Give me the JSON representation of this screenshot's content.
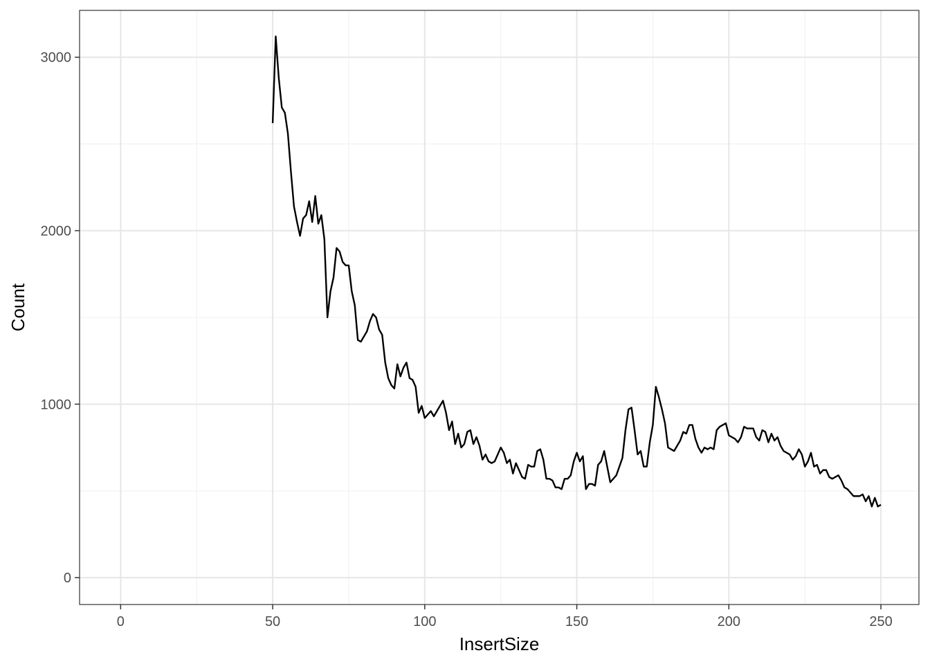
{
  "chart_data": {
    "type": "line",
    "title": "",
    "xlabel": "InsertSize",
    "ylabel": "Count",
    "xlim": [
      -13.5,
      262.5
    ],
    "ylim": [
      -155,
      3270
    ],
    "xticks": [
      0,
      50,
      100,
      150,
      200,
      250
    ],
    "xtick_labels": [
      "0",
      "50",
      "100",
      "150",
      "200",
      "250"
    ],
    "yticks": [
      0,
      1000,
      2000,
      3000
    ],
    "ytick_labels": [
      "0",
      "1000",
      "2000",
      "3000"
    ],
    "grid": true,
    "legend": "none",
    "colors": {
      "line": "#000000",
      "grid_major": "#e6e6e6",
      "grid_minor": "#f2f2f2",
      "panel_border": "#333333"
    },
    "series": [
      {
        "x": [
          50,
          51,
          52,
          53,
          54,
          55,
          56,
          57,
          58,
          59,
          60,
          61,
          62,
          63,
          64,
          65,
          66,
          67,
          68,
          69,
          70,
          71,
          72,
          73,
          74,
          75,
          76,
          77,
          78,
          79,
          80,
          81,
          82,
          83,
          84,
          85,
          86,
          87,
          88,
          89,
          90,
          91,
          92,
          93,
          94,
          95,
          96,
          97,
          98,
          99,
          100,
          101,
          102,
          103,
          104,
          105,
          106,
          107,
          108,
          109,
          110,
          111,
          112,
          113,
          114,
          115,
          116,
          117,
          118,
          119,
          120,
          121,
          122,
          123,
          124,
          125,
          126,
          127,
          128,
          129,
          130,
          131,
          132,
          133,
          134,
          135,
          136,
          137,
          138,
          139,
          140,
          141,
          142,
          143,
          144,
          145,
          146,
          147,
          148,
          149,
          150,
          151,
          152,
          153,
          154,
          155,
          156,
          157,
          158,
          159,
          160,
          161,
          162,
          163,
          164,
          165,
          166,
          167,
          168,
          169,
          170,
          171,
          172,
          173,
          174,
          175,
          176,
          177,
          178,
          179,
          180,
          181,
          182,
          183,
          184,
          185,
          186,
          187,
          188,
          189,
          190,
          191,
          192,
          193,
          194,
          195,
          196,
          197,
          198,
          199,
          200,
          201,
          202,
          203,
          204,
          205,
          206,
          207,
          208,
          209,
          210,
          211,
          212,
          213,
          214,
          215,
          216,
          217,
          218,
          219,
          220,
          221,
          222,
          223,
          224,
          225,
          226,
          227,
          228,
          229,
          230,
          231,
          232,
          233,
          234,
          235,
          236,
          237,
          238,
          239,
          240,
          241,
          242,
          243,
          244,
          245,
          246,
          247,
          248,
          249,
          250
        ],
        "y": [
          2620,
          3120,
          2880,
          2710,
          2680,
          2560,
          2340,
          2140,
          2050,
          1970,
          2070,
          2090,
          2170,
          2050,
          2200,
          2040,
          2090,
          1950,
          1500,
          1650,
          1730,
          1900,
          1880,
          1820,
          1800,
          1800,
          1650,
          1570,
          1370,
          1360,
          1390,
          1420,
          1480,
          1520,
          1500,
          1430,
          1400,
          1240,
          1150,
          1110,
          1090,
          1230,
          1160,
          1210,
          1240,
          1150,
          1140,
          1100,
          950,
          990,
          920,
          940,
          960,
          930,
          960,
          990,
          1020,
          950,
          850,
          900,
          770,
          830,
          750,
          770,
          840,
          850,
          770,
          810,
          760,
          680,
          710,
          670,
          660,
          670,
          710,
          750,
          720,
          660,
          680,
          600,
          660,
          620,
          580,
          570,
          650,
          640,
          640,
          730,
          740,
          680,
          570,
          570,
          560,
          520,
          520,
          510,
          570,
          570,
          590,
          670,
          720,
          670,
          700,
          510,
          540,
          540,
          530,
          650,
          670,
          730,
          640,
          550,
          570,
          590,
          640,
          690,
          850,
          970,
          980,
          850,
          710,
          730,
          640,
          640,
          780,
          880,
          1100,
          1040,
          970,
          890,
          750,
          740,
          730,
          760,
          790,
          840,
          830,
          880,
          880,
          800,
          750,
          720,
          750,
          740,
          750,
          740,
          850,
          870,
          880,
          890,
          820,
          810,
          800,
          780,
          810,
          870,
          860,
          860,
          860,
          810,
          790,
          850,
          840,
          780,
          830,
          790,
          810,
          760,
          730,
          720,
          710,
          680,
          700,
          740,
          710,
          640,
          670,
          720,
          640,
          650,
          600,
          620,
          620,
          580,
          570,
          580,
          590,
          560,
          520,
          510,
          490,
          470,
          470,
          470,
          480,
          440,
          470,
          410,
          460,
          410,
          420
        ]
      }
    ]
  }
}
